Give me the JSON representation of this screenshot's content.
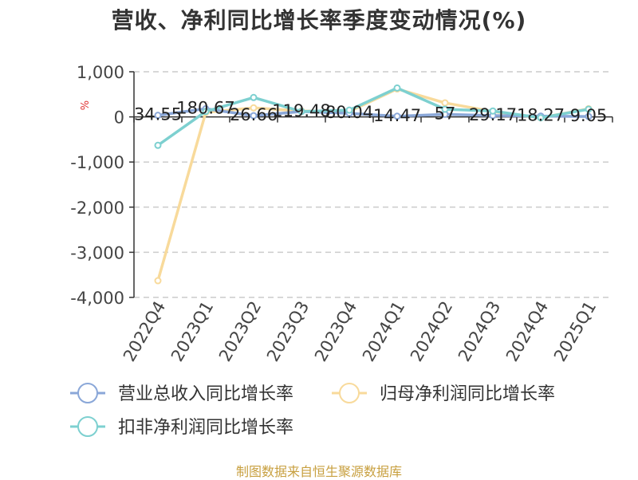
{
  "colors": {
    "revenue": "#8aa7d8",
    "net_profit": "#f8da9b",
    "deducted_profit": "#7dd0d0",
    "grid": "#cccccc",
    "axis": "#333333",
    "tick_text": "#444444",
    "unit_text": "#e03030",
    "source_text": "#c8a040"
  },
  "source": "制图数据来自恒生聚源数据库",
  "chart_data": {
    "type": "line",
    "title": "营收、净利同比增长率季度变动情况(%)",
    "ylabel": "%",
    "xlabel": "",
    "categories": [
      "2022Q4",
      "2023Q1",
      "2023Q2",
      "2023Q3",
      "2023Q4",
      "2024Q1",
      "2024Q2",
      "2024Q3",
      "2024Q4",
      "2025Q1"
    ],
    "ylim": [
      -4000,
      1000
    ],
    "yticks": [
      1000,
      0,
      -1000,
      -2000,
      -3000,
      -4000
    ],
    "ytick_labels": [
      "1,000",
      "0",
      "-1,000",
      "-2,000",
      "-3,000",
      "-4,000"
    ],
    "grid": true,
    "legend_position": "bottom",
    "series": [
      {
        "name": "营业总收入同比增长率",
        "color_key": "revenue",
        "values": [
          34.55,
          180.67,
          26.66,
          119.48,
          80.04,
          14.47,
          57,
          29.17,
          18.27,
          9.05
        ],
        "data_labels": [
          "34.55",
          "180.67",
          "26.66",
          "119.48",
          "80.04",
          "14.47",
          "57",
          "29.17",
          "18.27",
          "9.05"
        ]
      },
      {
        "name": "归母净利润同比增长率",
        "color_key": "net_profit",
        "values": [
          -3630,
          100,
          200,
          130,
          120,
          620,
          310,
          120,
          -20,
          180
        ]
      },
      {
        "name": "扣非净利润同比增长率",
        "color_key": "deducted_profit",
        "values": [
          -630,
          120,
          430,
          120,
          150,
          640,
          170,
          130,
          -20,
          170
        ]
      }
    ]
  }
}
